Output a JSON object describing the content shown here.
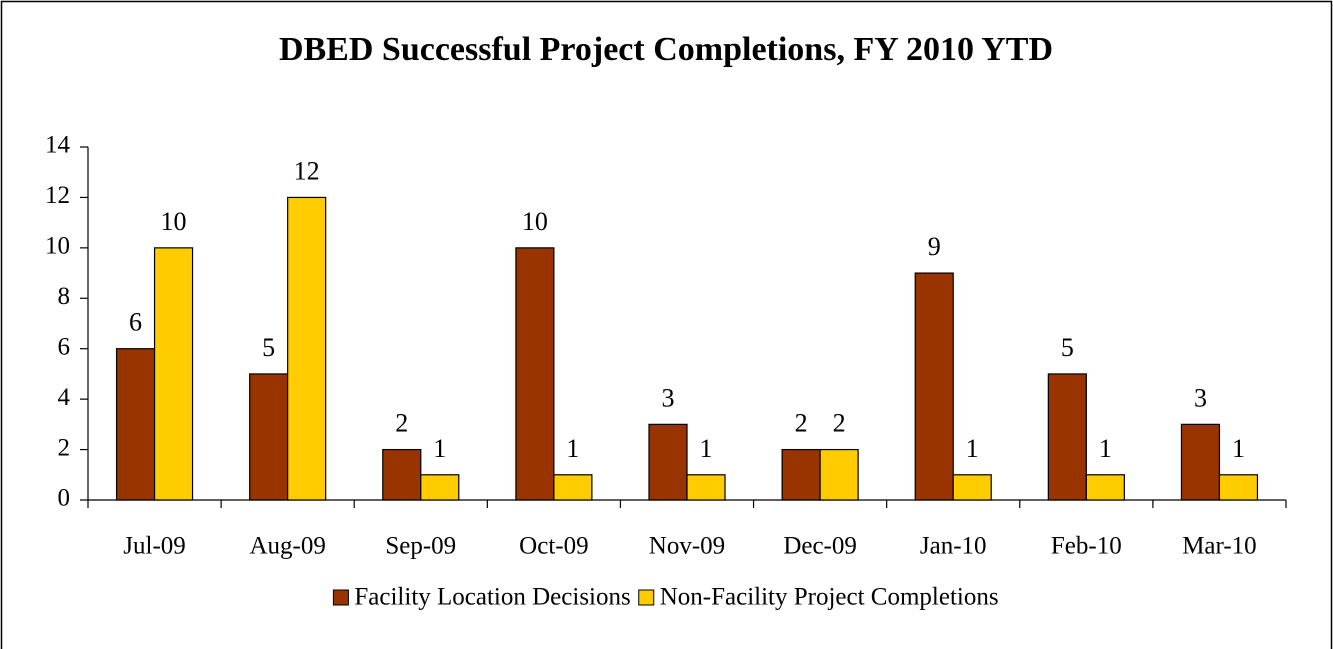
{
  "chart_data": {
    "type": "bar",
    "title": "DBED Successful Project Completions, FY 2010 YTD",
    "categories": [
      "Jul-09",
      "Aug-09",
      "Sep-09",
      "Oct-09",
      "Nov-09",
      "Dec-09",
      "Jan-10",
      "Feb-10",
      "Mar-10"
    ],
    "series": [
      {
        "name": "Facility Location Decisions",
        "color": "#993300",
        "values": [
          6,
          5,
          2,
          10,
          3,
          2,
          9,
          5,
          3
        ]
      },
      {
        "name": "Non-Facility Project Completions",
        "color": "#FFCC00",
        "values": [
          10,
          12,
          1,
          1,
          1,
          2,
          1,
          1,
          1
        ]
      }
    ],
    "ylim": [
      0,
      14
    ],
    "yticks": [
      0,
      2,
      4,
      6,
      8,
      10,
      12,
      14
    ],
    "grid": false,
    "legend": "bottom"
  }
}
